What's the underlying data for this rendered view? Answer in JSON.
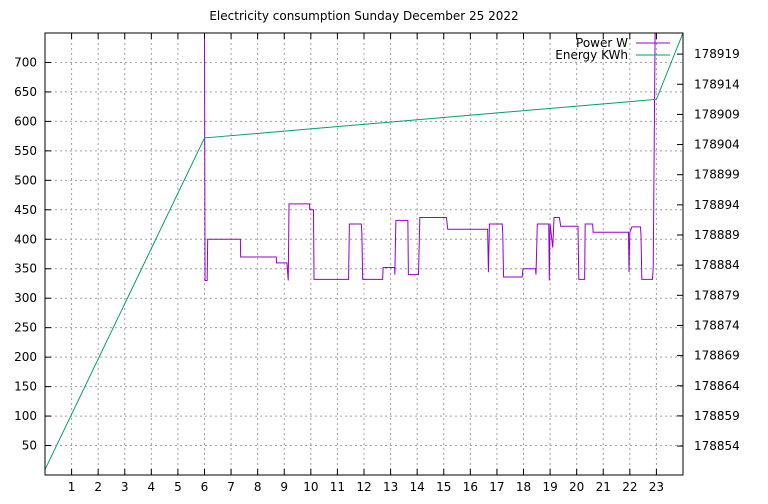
{
  "chart_data": {
    "type": "line",
    "title": "Electricity consumption Sunday December 25 2022",
    "xlim": [
      0,
      24
    ],
    "x_ticks": [
      1,
      2,
      3,
      4,
      5,
      6,
      7,
      8,
      9,
      10,
      11,
      12,
      13,
      14,
      15,
      16,
      17,
      18,
      19,
      20,
      21,
      22,
      23
    ],
    "y_left_lim": [
      0,
      750
    ],
    "y_left_ticks": [
      50,
      100,
      150,
      200,
      250,
      300,
      350,
      400,
      450,
      500,
      550,
      600,
      650,
      700
    ],
    "y_right_lim": [
      178849.2,
      178922.5
    ],
    "y_right_ticks": [
      178854,
      178859,
      178864,
      178869,
      178874,
      178879,
      178884,
      178889,
      178894,
      178899,
      178904,
      178909,
      178914,
      178919
    ],
    "grid": true,
    "legend_position": "top-right",
    "series": [
      {
        "name": "Power W",
        "axis": "left",
        "color": "#9400d3",
        "points": [
          [
            6.0,
            750
          ],
          [
            6.02,
            330
          ],
          [
            6.06,
            330
          ],
          [
            6.1,
            330
          ],
          [
            6.12,
            400
          ],
          [
            7.35,
            400
          ],
          [
            7.36,
            370
          ],
          [
            8.7,
            370
          ],
          [
            8.71,
            360
          ],
          [
            9.1,
            360
          ],
          [
            9.15,
            330
          ],
          [
            9.18,
            460
          ],
          [
            9.95,
            460
          ],
          [
            9.96,
            450
          ],
          [
            10.1,
            450
          ],
          [
            10.12,
            332
          ],
          [
            11.42,
            332
          ],
          [
            11.45,
            426
          ],
          [
            11.9,
            426
          ],
          [
            11.92,
            410
          ],
          [
            11.95,
            332
          ],
          [
            12.7,
            332
          ],
          [
            12.72,
            352
          ],
          [
            13.15,
            352
          ],
          [
            13.16,
            340
          ],
          [
            13.2,
            432
          ],
          [
            13.65,
            432
          ],
          [
            13.67,
            340
          ],
          [
            14.05,
            340
          ],
          [
            14.1,
            437
          ],
          [
            15.1,
            437
          ],
          [
            15.15,
            417
          ],
          [
            16.65,
            417
          ],
          [
            16.68,
            344
          ],
          [
            16.72,
            426
          ],
          [
            17.2,
            426
          ],
          [
            17.22,
            410
          ],
          [
            17.25,
            336
          ],
          [
            17.95,
            336
          ],
          [
            17.98,
            350
          ],
          [
            18.45,
            350
          ],
          [
            18.47,
            340
          ],
          [
            18.52,
            426
          ],
          [
            18.95,
            426
          ],
          [
            18.97,
            330
          ],
          [
            19.0,
            426
          ],
          [
            19.1,
            386
          ],
          [
            19.15,
            437
          ],
          [
            19.35,
            437
          ],
          [
            19.4,
            422
          ],
          [
            20.05,
            422
          ],
          [
            20.08,
            332
          ],
          [
            20.3,
            332
          ],
          [
            20.32,
            426
          ],
          [
            20.6,
            426
          ],
          [
            20.62,
            412
          ],
          [
            21.95,
            412
          ],
          [
            21.97,
            344
          ],
          [
            22.0,
            412
          ],
          [
            22.08,
            421
          ],
          [
            22.4,
            421
          ],
          [
            22.42,
            408
          ],
          [
            22.45,
            332
          ],
          [
            22.85,
            332
          ],
          [
            22.88,
            352
          ],
          [
            22.95,
            750
          ],
          [
            23.0,
            750
          ]
        ]
      },
      {
        "name": "Energy KWh",
        "axis": "right",
        "color": "#009e73",
        "points": [
          [
            0,
            178850.1
          ],
          [
            6.0,
            178905.1
          ],
          [
            23.0,
            178911.5
          ],
          [
            24.0,
            178922.5
          ]
        ]
      }
    ]
  }
}
